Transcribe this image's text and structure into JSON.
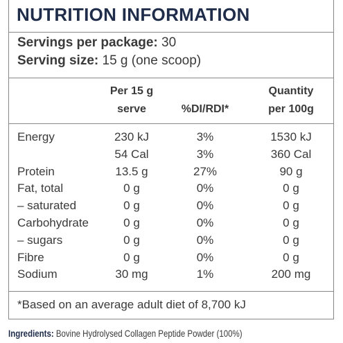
{
  "header": {
    "title": "NUTRITION INFORMATION"
  },
  "servings": [
    {
      "label": "Servings per package:",
      "value": "30"
    },
    {
      "label": "Serving size:",
      "value": "15 g (one scoop)"
    }
  ],
  "table": {
    "columns": [
      [
        "Per 15 g",
        "serve"
      ],
      [
        "%DI/RDI*"
      ],
      [
        "Quantity",
        "per 100g"
      ]
    ],
    "rows": [
      [
        "Energy",
        "230 kJ",
        "3%",
        "1530 kJ"
      ],
      [
        null,
        "54 Cal",
        "3%",
        "360 Cal"
      ],
      [
        "Protein",
        "13.5 g",
        "27%",
        "90 g"
      ],
      [
        "Fat, total",
        "0 g",
        "0%",
        "0 g"
      ],
      [
        "– saturated",
        "0 g",
        "0%",
        "0 g"
      ],
      [
        "Carbohydrate",
        "0 g",
        "0%",
        "0 g"
      ],
      [
        "– sugars",
        "0 g",
        "0%",
        "0 g"
      ],
      [
        "Fibre",
        "0 g",
        "0%",
        "0 g"
      ],
      [
        "Sodium",
        "30 mg",
        "1%",
        "200 mg"
      ]
    ]
  },
  "footnote": "*Based on an average adult diet of 8,700 kJ",
  "ingredients": {
    "label": "Ingredients:",
    "text": "Bovine Hydrolysed Collagen Peptide Powder (100%)"
  }
}
